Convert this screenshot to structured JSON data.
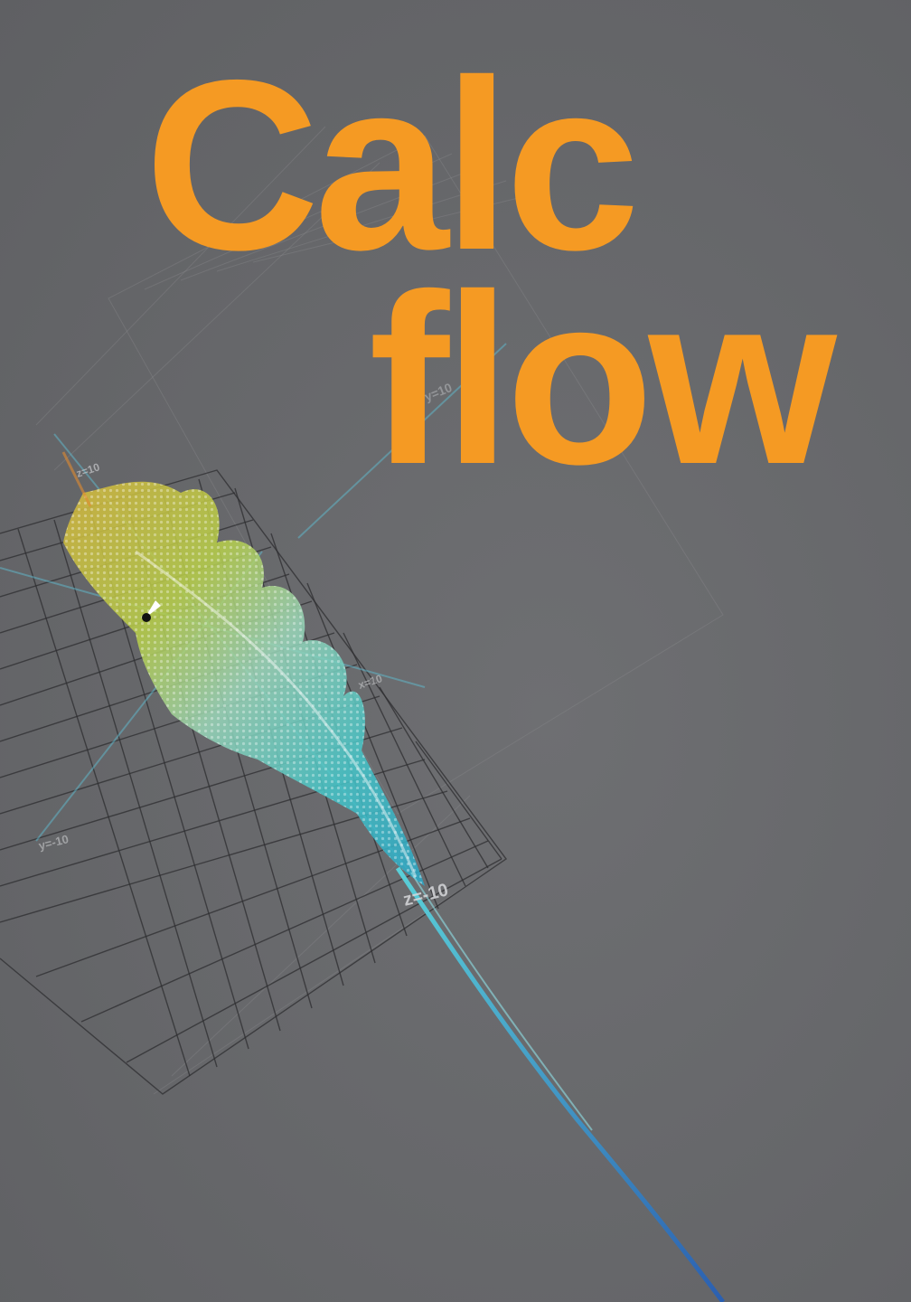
{
  "title": {
    "line1": "Calc",
    "line2": "flow"
  },
  "axis_labels": {
    "z_pos": "z=10",
    "y_pos": "y=10",
    "x_pos": "x=10",
    "y_neg": "y=-10",
    "z_neg": "z=-10"
  },
  "colors": {
    "accent": "#f59a23",
    "background": "#67686b",
    "surface_top": "#e6c93a",
    "surface_mid": "#8fd46a",
    "surface_bottom": "#3fc4c8",
    "axis_line": "#5fbcd0"
  }
}
